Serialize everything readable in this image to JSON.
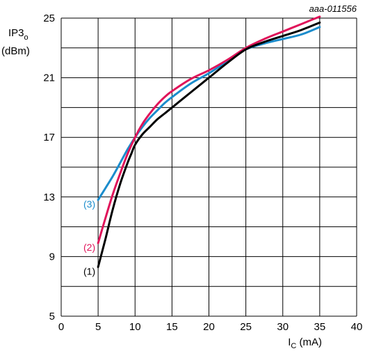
{
  "chart_data": {
    "type": "line",
    "figure_id": "aaa-011556",
    "ylabel_main": "IP3",
    "ylabel_sub": "o",
    "ylabel_unit": "(dBm)",
    "xlabel_main": "I",
    "xlabel_sub": "C",
    "xlabel_unit": " (mA)",
    "xlim": [
      0,
      40
    ],
    "ylim": [
      5,
      25
    ],
    "xticks": [
      0,
      5,
      10,
      15,
      20,
      25,
      30,
      35,
      40
    ],
    "yticks": [
      5,
      9,
      13,
      17,
      21,
      25
    ],
    "grid": true,
    "series": [
      {
        "name": "(1)",
        "color": "#000000",
        "x": [
          5,
          6,
          7,
          8,
          9,
          9.5,
          10,
          11,
          12,
          13,
          14,
          15,
          17.5,
          20,
          22.5,
          25,
          27.5,
          30,
          32.5,
          35
        ],
        "y": [
          8.3,
          10.2,
          12.2,
          13.9,
          15.3,
          15.9,
          16.5,
          17.2,
          17.7,
          18.2,
          18.6,
          19.0,
          20.0,
          21.0,
          22.0,
          22.9,
          23.4,
          23.8,
          24.2,
          24.7
        ]
      },
      {
        "name": "(2)",
        "color": "#e0145a",
        "x": [
          5,
          6,
          7,
          8,
          9,
          10,
          11,
          12,
          13,
          14,
          15,
          17.5,
          20,
          22.5,
          25,
          27.5,
          30,
          32.5,
          35
        ],
        "y": [
          9.9,
          11.6,
          13.2,
          14.6,
          15.9,
          17.0,
          17.9,
          18.6,
          19.2,
          19.7,
          20.1,
          20.9,
          21.5,
          22.2,
          23.0,
          23.6,
          24.1,
          24.6,
          25.1
        ]
      },
      {
        "name": "(3)",
        "color": "#1b8ccc",
        "x": [
          5,
          6,
          7,
          8,
          9,
          10,
          11,
          12,
          13,
          14,
          15,
          17.5,
          20,
          22.5,
          25,
          27.5,
          30,
          32.5,
          35
        ],
        "y": [
          12.8,
          13.6,
          14.4,
          15.3,
          16.2,
          17.0,
          17.7,
          18.3,
          18.8,
          19.3,
          19.7,
          20.6,
          21.3,
          22.1,
          22.9,
          23.3,
          23.6,
          23.9,
          24.4
        ]
      }
    ]
  }
}
